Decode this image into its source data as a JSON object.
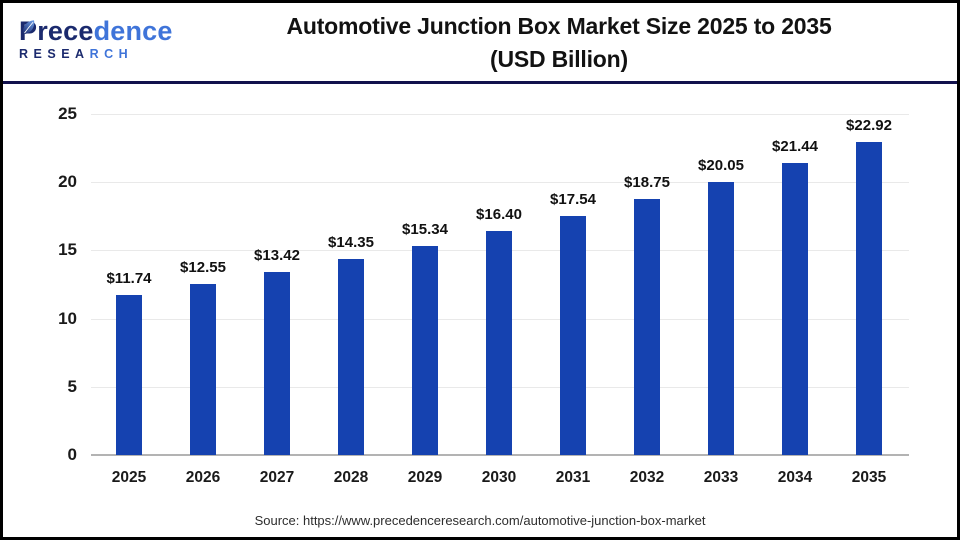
{
  "header": {
    "logo": {
      "brand_part1": "Prece",
      "brand_part2": "dence",
      "subtitle_part1": "RESEA",
      "subtitle_part2": "RCH"
    },
    "title_line1": "Automotive Junction Box Market Size 2025 to 2035",
    "title_line2": "(USD Billion)"
  },
  "chart_data": {
    "type": "bar",
    "title": "Automotive Junction Box Market Size 2025 to 2035 (USD Billion)",
    "categories": [
      "2025",
      "2026",
      "2027",
      "2028",
      "2029",
      "2030",
      "2031",
      "2032",
      "2033",
      "2034",
      "2035"
    ],
    "values": [
      11.74,
      12.55,
      13.42,
      14.35,
      15.34,
      16.4,
      17.54,
      18.75,
      20.05,
      21.44,
      22.92
    ],
    "data_labels": [
      "$11.74",
      "$12.55",
      "$13.42",
      "$14.35",
      "$15.34",
      "$16.40",
      "$17.54",
      "$18.75",
      "$20.05",
      "$21.44",
      "$22.92"
    ],
    "xlabel": "",
    "ylabel": "",
    "ylim": [
      0,
      25
    ],
    "yticks": [
      0,
      5,
      10,
      15,
      20,
      25
    ],
    "ytick_labels": [
      "0",
      "5",
      "10",
      "15",
      "20",
      "25"
    ],
    "grid": true,
    "legend": false,
    "bar_color": "#1542b0"
  },
  "colors": {
    "bar": "#1542b0",
    "header_divider": "#12114d",
    "logo_dark": "#1b2a6e",
    "logo_blue": "#3f74d9",
    "gridline": "#e9e9e9",
    "axis_line": "#b3b3b3"
  },
  "footer": {
    "source": "Source: https://www.precedenceresearch.com/automotive-junction-box-market"
  }
}
